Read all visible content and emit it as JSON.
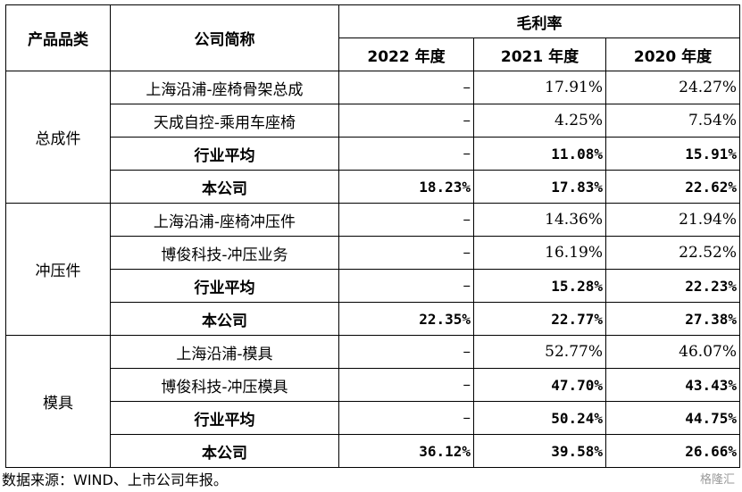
{
  "header": {
    "category": "产品品类",
    "company": "公司简称",
    "margin_group": "毛利率",
    "years": [
      "2022 年度",
      "2021 年度",
      "2020 年度"
    ]
  },
  "groups": [
    {
      "category": "总成件",
      "rows": [
        {
          "name": "上海沿浦-座椅骨架总成",
          "y2022": "–",
          "y2021": "17.91%",
          "y2020": "24.27%"
        },
        {
          "name": "天成自控-乘用车座椅",
          "y2022": "–",
          "y2021": "4.25%",
          "y2020": "7.54%"
        },
        {
          "name": "行业平均",
          "y2022": "–",
          "y2021": "11.08%",
          "y2020": "15.91%"
        },
        {
          "name": "本公司",
          "y2022": "18.23%",
          "y2021": "17.83%",
          "y2020": "22.62%"
        }
      ]
    },
    {
      "category": "冲压件",
      "rows": [
        {
          "name": "上海沿浦-座椅冲压件",
          "y2022": "–",
          "y2021": "14.36%",
          "y2020": "21.94%"
        },
        {
          "name": "博俊科技-冲压业务",
          "y2022": "–",
          "y2021": "16.19%",
          "y2020": "22.52%"
        },
        {
          "name": "行业平均",
          "y2022": "–",
          "y2021": "15.28%",
          "y2020": "22.23%"
        },
        {
          "name": "本公司",
          "y2022": "22.35%",
          "y2021": "22.77%",
          "y2020": "27.38%"
        }
      ]
    },
    {
      "category": "模具",
      "rows": [
        {
          "name": "上海沿浦-模具",
          "y2022": "–",
          "y2021": "52.77%",
          "y2020": "46.07%"
        },
        {
          "name": "博俊科技-冲压模具",
          "y2022": "–",
          "y2021": "47.70%",
          "y2020": "43.43%"
        },
        {
          "name": "行业平均",
          "y2022": "–",
          "y2021": "50.24%",
          "y2020": "44.75%"
        },
        {
          "name": "本公司",
          "y2022": "36.12%",
          "y2021": "39.58%",
          "y2020": "26.66%"
        }
      ]
    }
  ],
  "footer": {
    "source": "数据来源：WIND、上市公司年报。",
    "watermark": "格隆汇"
  }
}
